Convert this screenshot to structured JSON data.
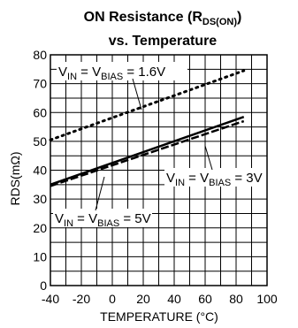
{
  "chart_data": {
    "type": "line",
    "title_line1_main": "ON Resistance (R",
    "title_line1_sub": "DS(ON)",
    "title_line1_end": ")",
    "title_line2": "vs. Temperature",
    "xlabel": "TEMPERATURE (°C)",
    "ylabel": "RDS(mΩ)",
    "xlim": [
      -40,
      100
    ],
    "ylim": [
      0,
      80
    ],
    "x_ticks": [
      -40,
      -20,
      0,
      20,
      40,
      60,
      80,
      100
    ],
    "y_ticks": [
      0,
      10,
      20,
      30,
      40,
      50,
      60,
      70,
      80
    ],
    "grid": true,
    "series": [
      {
        "x": [
          -40,
          85
        ],
        "values": [
          50.5,
          74.5
        ],
        "style": "dotted",
        "label": {
          "v1": "V",
          "s1": "IN",
          "eq": " = V",
          "s2": "BIAS",
          "val": " = 1.6V"
        }
      },
      {
        "x": [
          -40,
          85
        ],
        "values": [
          35,
          58.5
        ],
        "style": "solid",
        "label": {
          "v1": "V",
          "s1": "IN",
          "eq": " = V",
          "s2": "BIAS",
          "val": " = 3V"
        }
      },
      {
        "x": [
          -40,
          85
        ],
        "values": [
          34.5,
          57
        ],
        "style": "dashed",
        "label": {
          "v1": "V",
          "s1": "IN",
          "eq": " = V",
          "s2": "BIAS",
          "val": " = 5V"
        }
      }
    ]
  }
}
